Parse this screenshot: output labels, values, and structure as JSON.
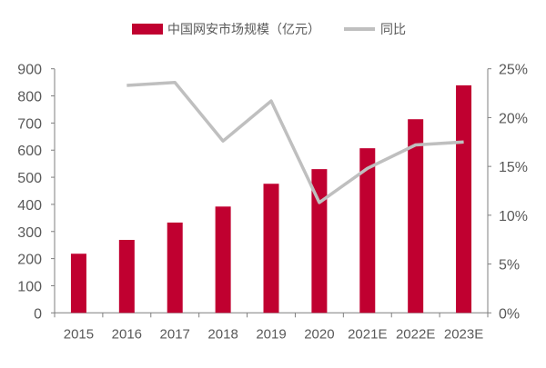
{
  "chart_data": {
    "type": "bar+line",
    "categories": [
      "2015",
      "2016",
      "2017",
      "2018",
      "2019",
      "2020",
      "2021E",
      "2022E",
      "2023E"
    ],
    "series": [
      {
        "name": "中国网安市场规模（亿元）",
        "type": "bar",
        "axis": "left",
        "color": "#C00030",
        "values": [
          218,
          269,
          333,
          392,
          476,
          530,
          607,
          714,
          839
        ]
      },
      {
        "name": "同比",
        "type": "line",
        "axis": "right",
        "color": "#BFBFBF",
        "values": [
          null,
          23.3,
          23.6,
          17.6,
          21.7,
          11.3,
          14.8,
          17.2,
          17.5
        ]
      }
    ],
    "y_left": {
      "lim": [
        0,
        900
      ],
      "ticks": [
        "0",
        "100",
        "200",
        "300",
        "400",
        "500",
        "600",
        "700",
        "800",
        "900"
      ]
    },
    "y_right": {
      "lim": [
        0,
        25
      ],
      "ticks": [
        "0%",
        "5%",
        "10%",
        "15%",
        "20%",
        "25%"
      ]
    },
    "grid": false,
    "legend": "top"
  }
}
